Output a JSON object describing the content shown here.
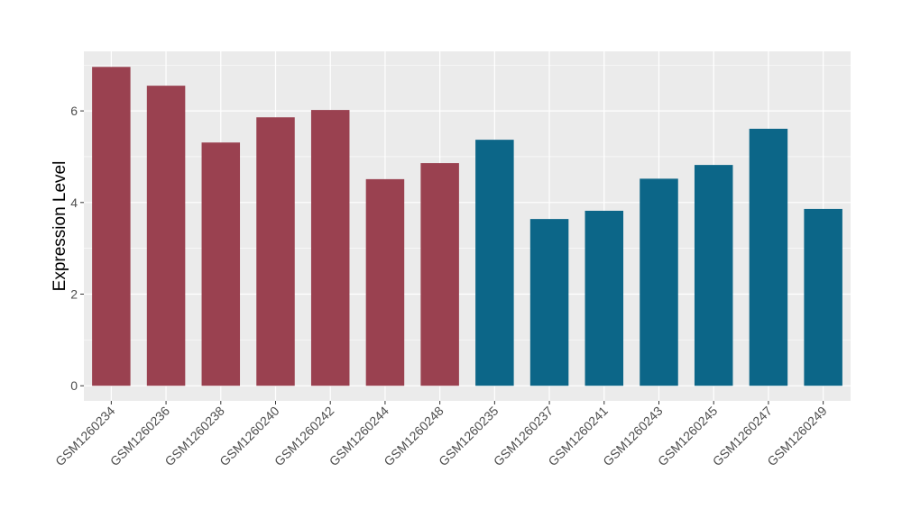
{
  "chart_data": {
    "type": "bar",
    "title": "",
    "xlabel": "",
    "ylabel": "Expression Level",
    "ylim": [
      -0.33,
      7.3
    ],
    "yticks": [
      0,
      2,
      4,
      6
    ],
    "grid": true,
    "legend": "none",
    "categories": [
      "GSM1260234",
      "GSM1260236",
      "GSM1260238",
      "GSM1260240",
      "GSM1260242",
      "GSM1260244",
      "GSM1260248",
      "GSM1260235",
      "GSM1260237",
      "GSM1260241",
      "GSM1260243",
      "GSM1260245",
      "GSM1260247",
      "GSM1260249"
    ],
    "values": [
      6.96,
      6.55,
      5.31,
      5.86,
      6.02,
      4.51,
      4.86,
      5.37,
      3.64,
      3.82,
      4.52,
      4.82,
      5.61,
      3.86
    ],
    "groups": [
      0,
      0,
      0,
      0,
      0,
      0,
      0,
      1,
      1,
      1,
      1,
      1,
      1,
      1
    ],
    "colors": [
      "#9A4150",
      "#0C6688"
    ]
  }
}
